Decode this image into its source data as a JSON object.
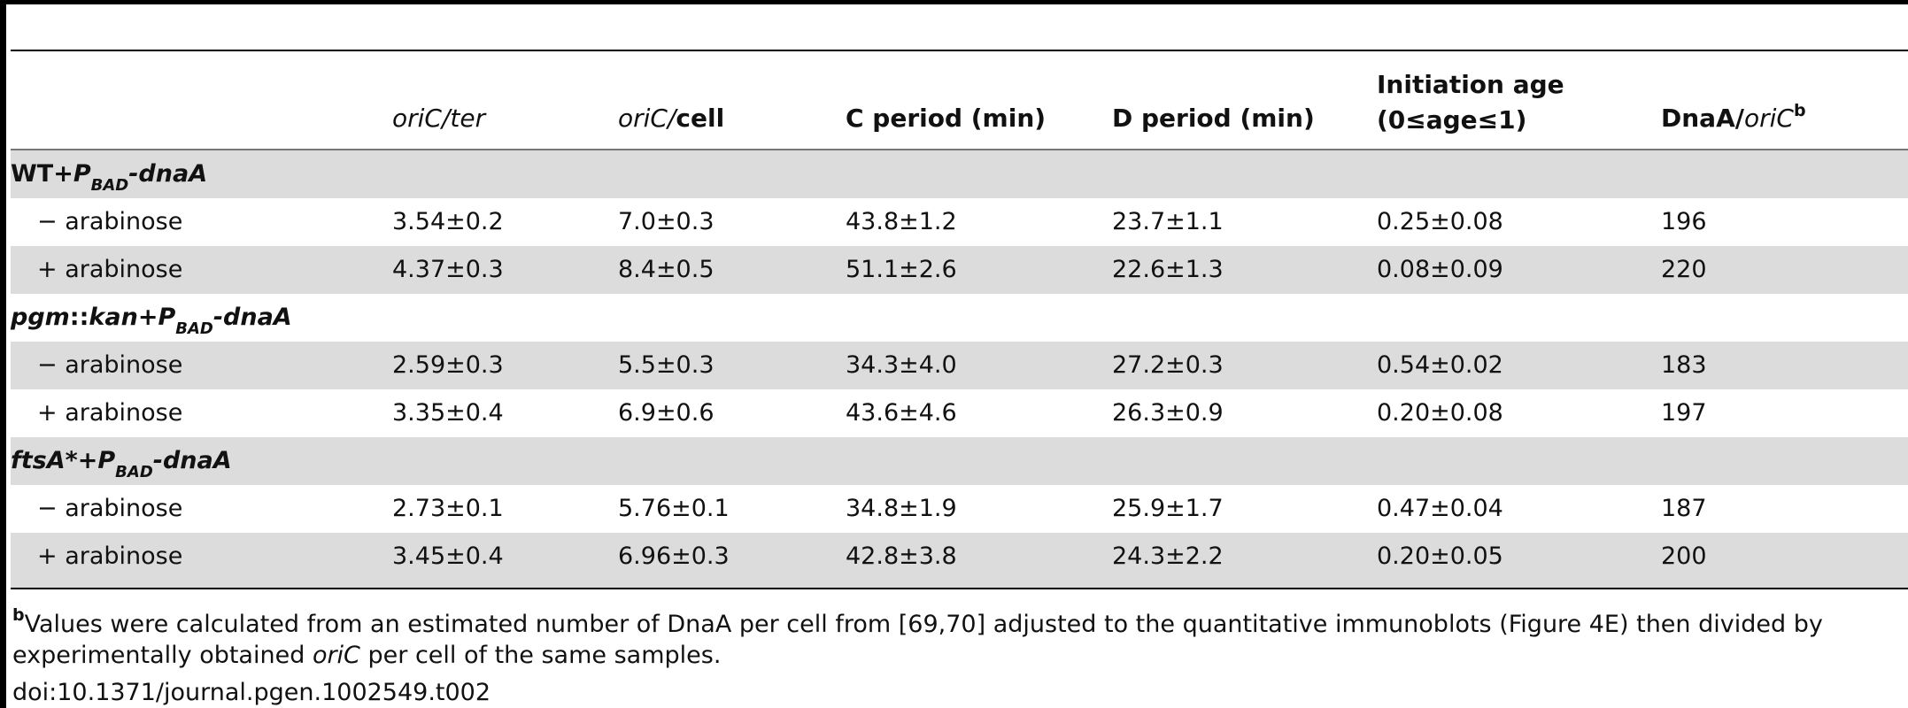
{
  "table": {
    "headers": {
      "oric_ter": [
        "oriC",
        "/",
        "ter"
      ],
      "oric_cell": [
        "oriC",
        "/",
        "cell"
      ],
      "c_period": "C period (min)",
      "d_period": "D period (min)",
      "init_age_line1": "Initiation age",
      "init_age_line2": "(0≤age≤1)",
      "dnaa_oric": [
        "DnaA/",
        "oriC",
        "b"
      ]
    },
    "groups": [
      {
        "label_parts": [
          "WT+",
          "P",
          "BAD",
          "-dnaA"
        ],
        "rows": [
          {
            "condition": "− arabinose",
            "oric_ter": "3.54±0.2",
            "oric_cell": "7.0±0.3",
            "c_period": "43.8±1.2",
            "d_period": "23.7±1.1",
            "init_age": "0.25±0.08",
            "dnaa_oric": "196"
          },
          {
            "condition": "+ arabinose",
            "oric_ter": "4.37±0.3",
            "oric_cell": "8.4±0.5",
            "c_period": "51.1±2.6",
            "d_period": "22.6±1.3",
            "init_age": "0.08±0.09",
            "dnaa_oric": "220"
          }
        ]
      },
      {
        "label_parts": [
          "pgm",
          "::",
          "kan",
          "+",
          "P",
          "BAD",
          "-dnaA"
        ],
        "rows": [
          {
            "condition": "− arabinose",
            "oric_ter": "2.59±0.3",
            "oric_cell": "5.5±0.3",
            "c_period": "34.3±4.0",
            "d_period": "27.2±0.3",
            "init_age": "0.54±0.02",
            "dnaa_oric": "183"
          },
          {
            "condition": "+ arabinose",
            "oric_ter": "3.35±0.4",
            "oric_cell": "6.9±0.6",
            "c_period": "43.6±4.6",
            "d_period": "26.3±0.9",
            "init_age": "0.20±0.08",
            "dnaa_oric": "197"
          }
        ]
      },
      {
        "label_parts": [
          "ftsA*",
          "+",
          "P",
          "BAD",
          "-dnaA"
        ],
        "rows": [
          {
            "condition": "− arabinose",
            "oric_ter": "2.73±0.1",
            "oric_cell": "5.76±0.1",
            "c_period": "34.8±1.9",
            "d_period": "25.9±1.7",
            "init_age": "0.47±0.04",
            "dnaa_oric": "187"
          },
          {
            "condition": "+ arabinose",
            "oric_ter": "3.45±0.4",
            "oric_cell": "6.96±0.3",
            "c_period": "42.8±3.8",
            "d_period": "24.3±2.2",
            "init_age": "0.20±0.05",
            "dnaa_oric": "200"
          }
        ]
      }
    ]
  },
  "footnote": {
    "marker": "b",
    "text_before": "Values were calculated from an estimated number of DnaA per cell from [69,70] adjusted to the quantitative immunoblots (Figure 4E) then divided by experimentally obtained ",
    "text_italic": "oriC",
    "text_after": " per cell of the same samples."
  },
  "doi": "doi:10.1371/journal.pgen.1002549.t002",
  "colors": {
    "row_shade": "#dcdcdc",
    "rule": "#000000"
  }
}
